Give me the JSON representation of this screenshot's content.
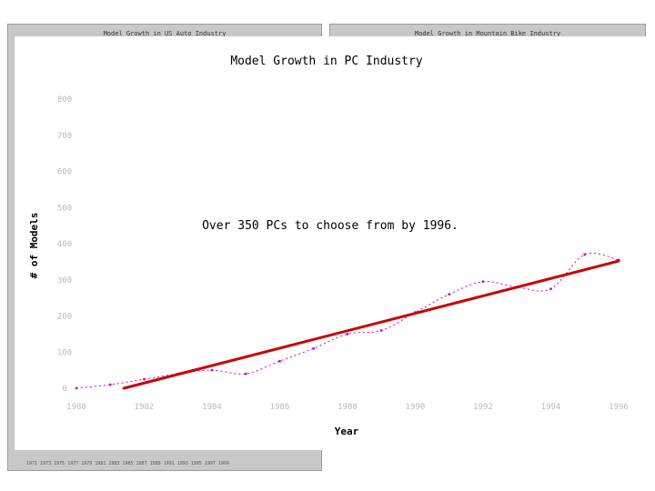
{
  "background": {
    "left_title": "Model Growth in US Auto Industry",
    "right_title": "Model Growth in Mountain Bike Industry",
    "left_axis_ticks": [
      "1971",
      "1973",
      "1975",
      "1977",
      "1979",
      "1981",
      "1983",
      "1985",
      "1987",
      "1989",
      "1991",
      "1993",
      "1995",
      "1997",
      "1999"
    ]
  },
  "chart_data": {
    "type": "line",
    "title": "Model Growth in PC Industry",
    "xlabel": "Year",
    "ylabel": "# of Models",
    "annotation": "Over 350 PCs to choose from by 1996.",
    "xlim": [
      1980,
      1996
    ],
    "ylim": [
      0,
      800
    ],
    "x_ticks": [
      1980,
      1982,
      1984,
      1986,
      1988,
      1990,
      1992,
      1994,
      1996
    ],
    "y_ticks": [
      0,
      100,
      200,
      300,
      400,
      500,
      600,
      700,
      800
    ],
    "grid": false,
    "series": [
      {
        "kind": "data",
        "color": "#cc00cc",
        "x": [
          1980,
          1981,
          1982,
          1983,
          1984,
          1985,
          1986,
          1987,
          1988,
          1989,
          1990,
          1991,
          1992,
          1993,
          1994,
          1995,
          1996
        ],
        "y": [
          0,
          10,
          25,
          40,
          50,
          40,
          75,
          110,
          150,
          160,
          210,
          260,
          295,
          280,
          275,
          370,
          355
        ]
      },
      {
        "kind": "trend",
        "color": "#cc0000",
        "x": [
          1981.4,
          1996
        ],
        "y": [
          0,
          352
        ]
      }
    ]
  }
}
